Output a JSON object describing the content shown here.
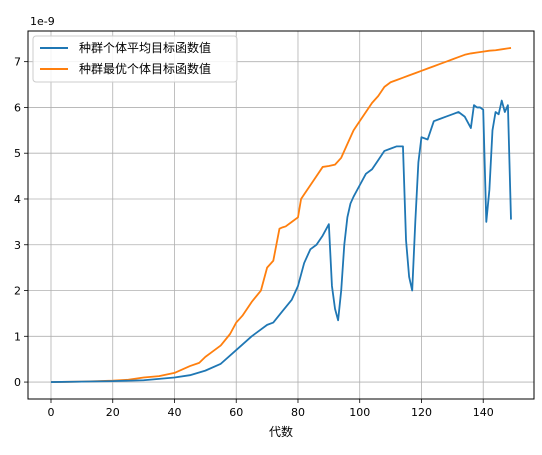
{
  "chart_data": {
    "type": "line",
    "title": "",
    "xlabel": "代数",
    "ylabel": "",
    "y_multiplier_label": "1e-9",
    "xlim": [
      -7.45,
      156.45
    ],
    "ylim": [
      -0.37,
      7.67
    ],
    "x_ticks": [
      0,
      20,
      40,
      60,
      80,
      100,
      120,
      140
    ],
    "y_ticks": [
      0,
      1,
      2,
      3,
      4,
      5,
      6,
      7
    ],
    "grid": true,
    "legend_position": "top-left",
    "series": [
      {
        "name": "种群个体平均目标函数值",
        "color": "#1f77b4",
        "x": [
          0,
          10,
          20,
          30,
          40,
          45,
          50,
          55,
          60,
          65,
          70,
          72,
          75,
          78,
          80,
          82,
          84,
          86,
          88,
          90,
          91,
          92,
          93,
          94,
          95,
          96,
          97,
          98,
          100,
          102,
          104,
          106,
          108,
          110,
          112,
          114,
          115,
          116,
          117,
          118,
          119,
          120,
          122,
          124,
          126,
          128,
          130,
          132,
          134,
          136,
          137,
          138,
          139,
          140,
          141,
          142,
          143,
          144,
          145,
          146,
          147,
          148,
          149
        ],
        "y": [
          0.0,
          0.01,
          0.02,
          0.04,
          0.1,
          0.15,
          0.25,
          0.4,
          0.7,
          1.0,
          1.25,
          1.3,
          1.55,
          1.8,
          2.1,
          2.6,
          2.9,
          3.0,
          3.2,
          3.45,
          2.1,
          1.6,
          1.35,
          2.0,
          3.0,
          3.6,
          3.9,
          4.05,
          4.3,
          4.55,
          4.65,
          4.85,
          5.05,
          5.1,
          5.15,
          5.15,
          3.1,
          2.3,
          2.0,
          3.5,
          4.8,
          5.35,
          5.3,
          5.7,
          5.75,
          5.8,
          5.85,
          5.9,
          5.8,
          5.55,
          6.05,
          6.0,
          6.0,
          5.95,
          3.5,
          4.2,
          5.5,
          5.9,
          5.85,
          6.15,
          5.9,
          6.05,
          3.55
        ]
      },
      {
        "name": "种群最优个体目标函数值",
        "color": "#ff7f0e",
        "x": [
          0,
          10,
          20,
          25,
          30,
          35,
          40,
          45,
          48,
          50,
          52,
          55,
          58,
          60,
          62,
          65,
          68,
          70,
          72,
          74,
          75,
          76,
          78,
          80,
          81,
          82,
          84,
          86,
          88,
          90,
          92,
          94,
          96,
          98,
          100,
          102,
          104,
          106,
          108,
          110,
          112,
          114,
          116,
          118,
          120,
          122,
          124,
          126,
          128,
          130,
          132,
          134,
          136,
          138,
          140,
          142,
          144,
          146,
          148,
          149
        ],
        "y": [
          0.0,
          0.01,
          0.03,
          0.05,
          0.1,
          0.13,
          0.2,
          0.35,
          0.42,
          0.55,
          0.65,
          0.8,
          1.05,
          1.3,
          1.45,
          1.75,
          2.0,
          2.5,
          2.65,
          3.35,
          3.38,
          3.4,
          3.5,
          3.6,
          4.0,
          4.1,
          4.3,
          4.5,
          4.7,
          4.72,
          4.75,
          4.9,
          5.2,
          5.5,
          5.7,
          5.9,
          6.1,
          6.25,
          6.45,
          6.55,
          6.6,
          6.65,
          6.7,
          6.75,
          6.8,
          6.85,
          6.9,
          6.95,
          7.0,
          7.05,
          7.1,
          7.15,
          7.18,
          7.2,
          7.22,
          7.24,
          7.25,
          7.27,
          7.29,
          7.3
        ]
      }
    ]
  }
}
